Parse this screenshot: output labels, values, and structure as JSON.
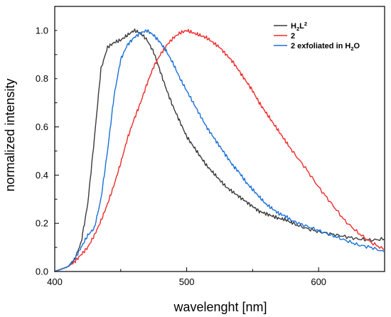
{
  "chart_data": {
    "type": "line",
    "xlabel": "wavelenght [nm]",
    "ylabel": "normalized intensity",
    "xlim": [
      400,
      650
    ],
    "ylim": [
      0.0,
      1.1
    ],
    "x_ticks": [
      "400",
      "500",
      "600"
    ],
    "y_ticks": [
      "0.0",
      "0.2",
      "0.4",
      "0.6",
      "0.8",
      "1.0"
    ],
    "legend_position": "top-right",
    "colors": {
      "black": "#3a3a3a",
      "red": "#ee2a2a",
      "blue": "#1b6fd8"
    },
    "legend": [
      {
        "main": "H",
        "sub1": "2",
        "main2": "L",
        "sup": "2",
        "color": "#3a3a3a"
      },
      {
        "label": "2",
        "color": "#ee2a2a"
      },
      {
        "label": "2 exfoliated in H",
        "sub": "2",
        "tail": "O",
        "color": "#1b6fd8"
      }
    ],
    "series": [
      {
        "color": "#3a3a3a",
        "x": [
          400,
          405,
          410,
          415,
          420,
          425,
          430,
          435,
          440,
          445,
          450,
          455,
          460,
          465,
          470,
          475,
          480,
          485,
          490,
          495,
          500,
          505,
          510,
          515,
          520,
          525,
          530,
          535,
          540,
          545,
          550,
          555,
          560,
          565,
          570,
          575,
          580,
          590,
          600,
          610,
          620,
          630,
          640,
          650
        ],
        "y": [
          0.0,
          0.01,
          0.02,
          0.05,
          0.12,
          0.28,
          0.55,
          0.84,
          0.93,
          0.95,
          0.96,
          0.98,
          1.0,
          0.99,
          0.96,
          0.91,
          0.83,
          0.75,
          0.68,
          0.62,
          0.56,
          0.52,
          0.48,
          0.44,
          0.41,
          0.38,
          0.35,
          0.33,
          0.31,
          0.29,
          0.27,
          0.25,
          0.24,
          0.23,
          0.22,
          0.215,
          0.2,
          0.18,
          0.165,
          0.155,
          0.145,
          0.135,
          0.13,
          0.135
        ]
      },
      {
        "color": "#ee2a2a",
        "x": [
          400,
          405,
          410,
          415,
          420,
          425,
          430,
          435,
          440,
          445,
          450,
          455,
          460,
          465,
          470,
          475,
          480,
          485,
          490,
          495,
          500,
          505,
          510,
          515,
          520,
          525,
          530,
          535,
          540,
          545,
          550,
          555,
          560,
          565,
          570,
          575,
          580,
          590,
          600,
          610,
          620,
          630,
          640,
          650
        ],
        "y": [
          0.0,
          0.01,
          0.02,
          0.04,
          0.07,
          0.1,
          0.15,
          0.21,
          0.28,
          0.36,
          0.45,
          0.55,
          0.63,
          0.7,
          0.78,
          0.85,
          0.9,
          0.94,
          0.97,
          0.99,
          1.0,
          0.99,
          0.98,
          0.97,
          0.95,
          0.93,
          0.9,
          0.87,
          0.83,
          0.79,
          0.75,
          0.7,
          0.66,
          0.62,
          0.58,
          0.54,
          0.5,
          0.43,
          0.35,
          0.28,
          0.21,
          0.16,
          0.12,
          0.09
        ]
      },
      {
        "color": "#1b6fd8",
        "x": [
          400,
          405,
          410,
          415,
          420,
          425,
          430,
          435,
          440,
          445,
          450,
          455,
          460,
          465,
          470,
          475,
          480,
          485,
          490,
          495,
          500,
          505,
          510,
          515,
          520,
          525,
          530,
          535,
          540,
          545,
          550,
          555,
          560,
          565,
          570,
          575,
          580,
          590,
          600,
          610,
          620,
          630,
          640,
          650
        ],
        "y": [
          0.0,
          0.01,
          0.02,
          0.05,
          0.1,
          0.15,
          0.18,
          0.3,
          0.5,
          0.73,
          0.88,
          0.94,
          0.97,
          0.99,
          1.0,
          0.98,
          0.95,
          0.91,
          0.86,
          0.8,
          0.75,
          0.7,
          0.65,
          0.6,
          0.56,
          0.52,
          0.48,
          0.44,
          0.41,
          0.37,
          0.34,
          0.31,
          0.28,
          0.26,
          0.24,
          0.23,
          0.21,
          0.19,
          0.17,
          0.15,
          0.13,
          0.11,
          0.1,
          0.08
        ]
      }
    ]
  }
}
